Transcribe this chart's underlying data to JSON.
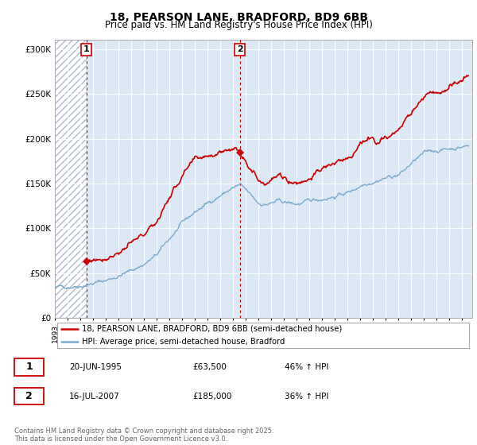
{
  "title1": "18, PEARSON LANE, BRADFORD, BD9 6BB",
  "title2": "Price paid vs. HM Land Registry's House Price Index (HPI)",
  "legend_house": "18, PEARSON LANE, BRADFORD, BD9 6BB (semi-detached house)",
  "legend_hpi": "HPI: Average price, semi-detached house, Bradford",
  "sale1_date": "20-JUN-1995",
  "sale1_price": "£63,500",
  "sale1_hpi": "46% ↑ HPI",
  "sale1_year": 1995.47,
  "sale1_value": 63500,
  "sale2_date": "16-JUL-2007",
  "sale2_price": "£185,000",
  "sale2_hpi": "36% ↑ HPI",
  "sale2_year": 2007.54,
  "sale2_value": 185000,
  "house_color": "#cc0000",
  "hpi_color": "#7aaacc",
  "vline_color": "#cc0000",
  "copyright": "Contains HM Land Registry data © Crown copyright and database right 2025.\nThis data is licensed under the Open Government Licence v3.0.",
  "ylim": [
    0,
    310000
  ],
  "xlim_start": 1993.0,
  "xlim_end": 2025.8
}
